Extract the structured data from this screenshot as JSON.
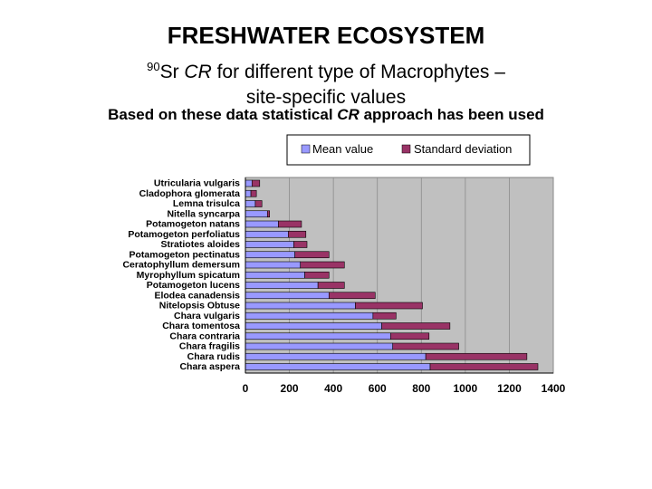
{
  "header": {
    "title": "FRESHWATER ECOSYSTEM",
    "sub_sup": "90",
    "sub_pre": "Sr ",
    "sub_italic": "CR",
    "sub_post": " for different type of Macrophytes –",
    "sub_line2": "site-specific values",
    "note_pre": "Based on these data statistical ",
    "note_italic": "CR",
    "note_post": " approach has been used"
  },
  "chart_data": {
    "type": "bar",
    "orientation": "horizontal",
    "stacked": true,
    "categories": [
      "Utricularia vulgaris",
      "Cladophora glomerata",
      "Lemna trisulca",
      "Nitella syncarpa",
      "Potamogeton natans",
      "Potamogeton perfoliatus",
      "Stratiotes aloides",
      "Potamogeton pectinatus",
      "Ceratophyllum demersum",
      "Myrophyllum spicatum",
      "Potamogeton lucens",
      "Elodea canadensis",
      "Nitelopsis Obtuse",
      "Chara vulgaris",
      "Chara tomentosa",
      "Chara contraria",
      "Chara fragilis",
      "Chara rudis",
      "Chara aspera"
    ],
    "series": [
      {
        "name": "Mean value",
        "color": "#9999ff",
        "values": [
          30,
          25,
          45,
          100,
          150,
          195,
          220,
          225,
          250,
          270,
          330,
          380,
          500,
          580,
          620,
          660,
          670,
          820,
          840
        ]
      },
      {
        "name": "Standard deviation",
        "color": "#993366",
        "values": [
          35,
          25,
          30,
          10,
          105,
          80,
          60,
          155,
          200,
          110,
          120,
          210,
          305,
          105,
          310,
          175,
          300,
          460,
          490
        ]
      }
    ],
    "xlim": [
      0,
      1400
    ],
    "xticks": [
      0,
      200,
      400,
      600,
      800,
      1000,
      1200,
      1400
    ],
    "grid": true,
    "legend_position": "top"
  }
}
